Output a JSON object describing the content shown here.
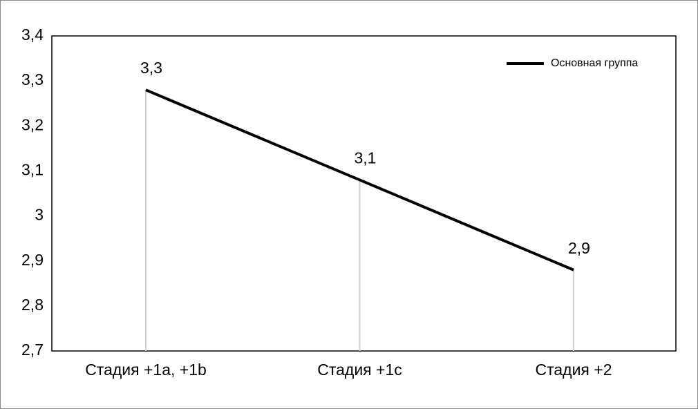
{
  "chart_data": {
    "type": "line",
    "categories": [
      "Стадия +1a, +1b",
      "Стадия +1c",
      "Стадия +2"
    ],
    "series": [
      {
        "name": "Основная группа",
        "color": "#000000",
        "values": [
          3.28,
          3.08,
          2.88
        ],
        "value_labels": [
          "3,3",
          "3,1",
          "2,9"
        ]
      }
    ],
    "ylim": [
      2.7,
      3.4
    ],
    "yticks": [
      {
        "value": 2.7,
        "label": "2,7"
      },
      {
        "value": 2.8,
        "label": "2,8"
      },
      {
        "value": 2.9,
        "label": "2,9"
      },
      3,
      {
        "value": 3.1,
        "label": "3,1"
      },
      {
        "value": 3.2,
        "label": "3,2"
      },
      {
        "value": 3.3,
        "label": "3,3"
      },
      {
        "value": 3.4,
        "label": "3,4"
      }
    ],
    "drop_lines": true,
    "legend": "upper right"
  }
}
